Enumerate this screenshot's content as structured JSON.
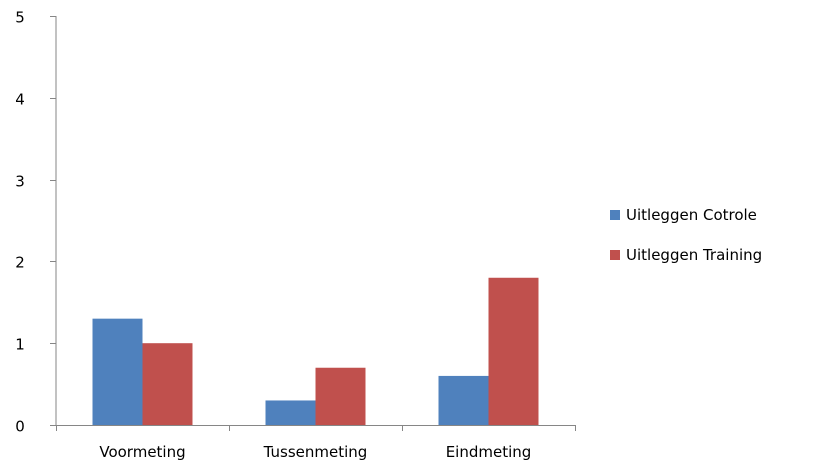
{
  "chart_data": {
    "type": "bar",
    "title": "",
    "xlabel": "",
    "ylabel": "",
    "categories": [
      "Voormeting",
      "Tussenmeting",
      "Eindmeting"
    ],
    "series": [
      {
        "name": "Uitleggen Cotrole",
        "color": "#4f81bd",
        "values": [
          1.3,
          0.3,
          0.6
        ]
      },
      {
        "name": "Uitleggen Training",
        "color": "#c0504d",
        "values": [
          1.0,
          0.7,
          1.8
        ]
      }
    ],
    "ylim": [
      0,
      5
    ],
    "yticks": [
      "0",
      "1",
      "2",
      "3",
      "4",
      "5"
    ],
    "grid": false,
    "legend_position": "right"
  }
}
